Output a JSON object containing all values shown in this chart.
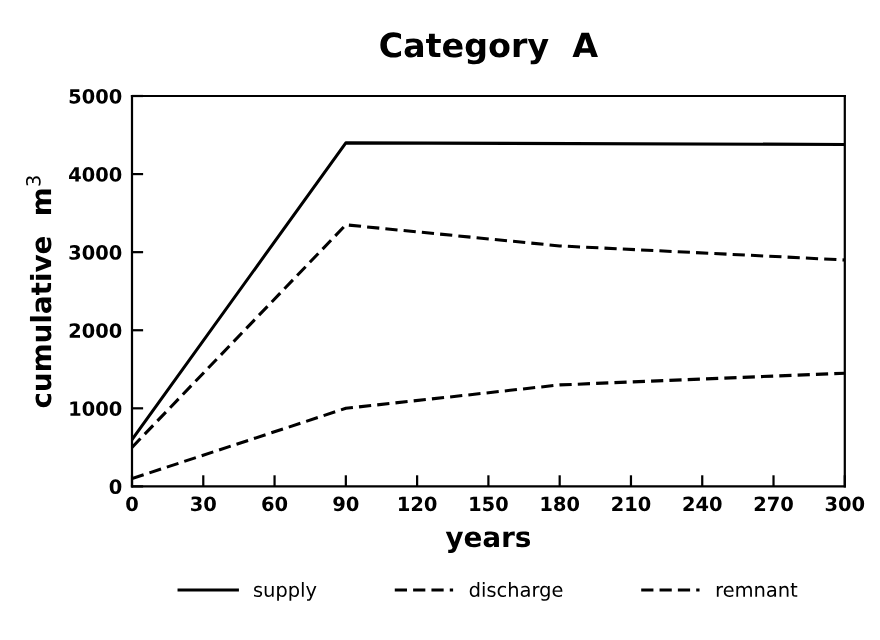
{
  "chart_data": {
    "type": "line",
    "title": "Category  A",
    "xlabel": "years",
    "ylabel": "cumulative  m$^{3}$",
    "xlim": [
      0,
      300
    ],
    "xticks": [
      0,
      30,
      60,
      90,
      120,
      150,
      180,
      210,
      240,
      270,
      300
    ],
    "ylim": [
      0,
      5000
    ],
    "yticks": [
      0,
      1000,
      2000,
      3000,
      4000,
      5000
    ],
    "grid": false,
    "legend": "bottom",
    "marker": "none",
    "series": [
      {
        "name": "supply",
        "color": "#000000",
        "line_style": "solid",
        "x": [
          0,
          90,
          300
        ],
        "values": [
          600,
          4400,
          4380
        ]
      },
      {
        "name": "discharge",
        "color": "#000000",
        "line_style": "dashed",
        "x": [
          0,
          90,
          180,
          300
        ],
        "values": [
          100,
          1000,
          1300,
          1450
        ]
      },
      {
        "name": "remnant",
        "color": "#000000",
        "line_style": "dashed",
        "x": [
          0,
          90,
          180,
          300
        ],
        "values": [
          500,
          3350,
          3080,
          2900
        ]
      }
    ]
  }
}
